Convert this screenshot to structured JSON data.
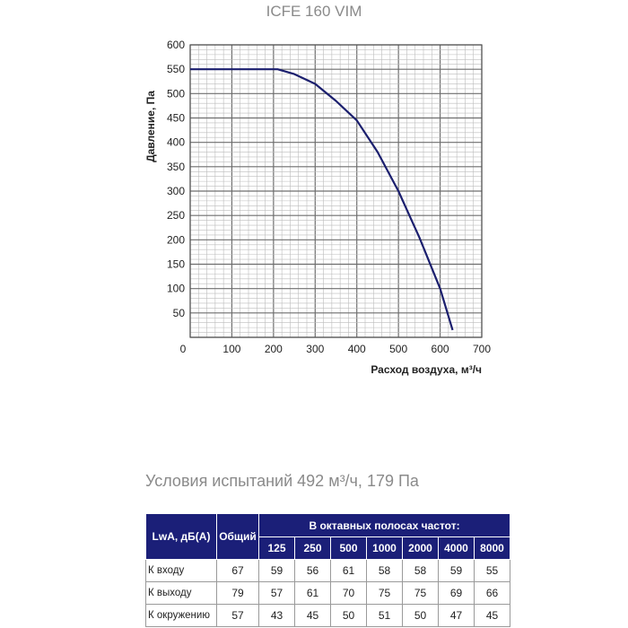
{
  "title": "ICFE 160 VIM",
  "chart_data": {
    "type": "line",
    "ylabel": "Давление, Па",
    "xlabel": "Расход воздуха, м³/ч",
    "xlim": [
      0,
      700
    ],
    "ylim": [
      0,
      600
    ],
    "x_ticks": [
      "0",
      "100",
      "200",
      "300",
      "400",
      "500",
      "600",
      "700"
    ],
    "y_ticks": [
      "50",
      "100",
      "150",
      "200",
      "250",
      "300",
      "350",
      "400",
      "450",
      "500",
      "550",
      "600"
    ],
    "grid": true,
    "line_color": "#1b1f6e",
    "series": [
      {
        "x": [
          0,
          210,
          250,
          300,
          350,
          400,
          450,
          500,
          550,
          600,
          630
        ],
        "y": [
          550,
          550,
          540,
          520,
          485,
          445,
          380,
          300,
          205,
          100,
          15
        ]
      }
    ]
  },
  "conditions": "Условия испытаний 492 м³/ч, 179 Па",
  "table": {
    "col_lwa": "LwA, дБ(A)",
    "col_total": "Общий",
    "bands_header": "В октавных полосах частот:",
    "freqs": [
      "125",
      "250",
      "500",
      "1000",
      "2000",
      "4000",
      "8000"
    ],
    "rows": [
      {
        "label": "К входу",
        "total": "67",
        "values": [
          "59",
          "56",
          "61",
          "58",
          "58",
          "59",
          "55"
        ]
      },
      {
        "label": "К выходу",
        "total": "79",
        "values": [
          "57",
          "61",
          "70",
          "75",
          "75",
          "69",
          "66"
        ]
      },
      {
        "label": "К окружению",
        "total": "57",
        "values": [
          "43",
          "45",
          "50",
          "51",
          "50",
          "47",
          "45"
        ]
      }
    ]
  },
  "colors": {
    "header_bg": "#1b1f78",
    "grid": "#bcbcbc",
    "muted_text": "#8a8a8a"
  }
}
